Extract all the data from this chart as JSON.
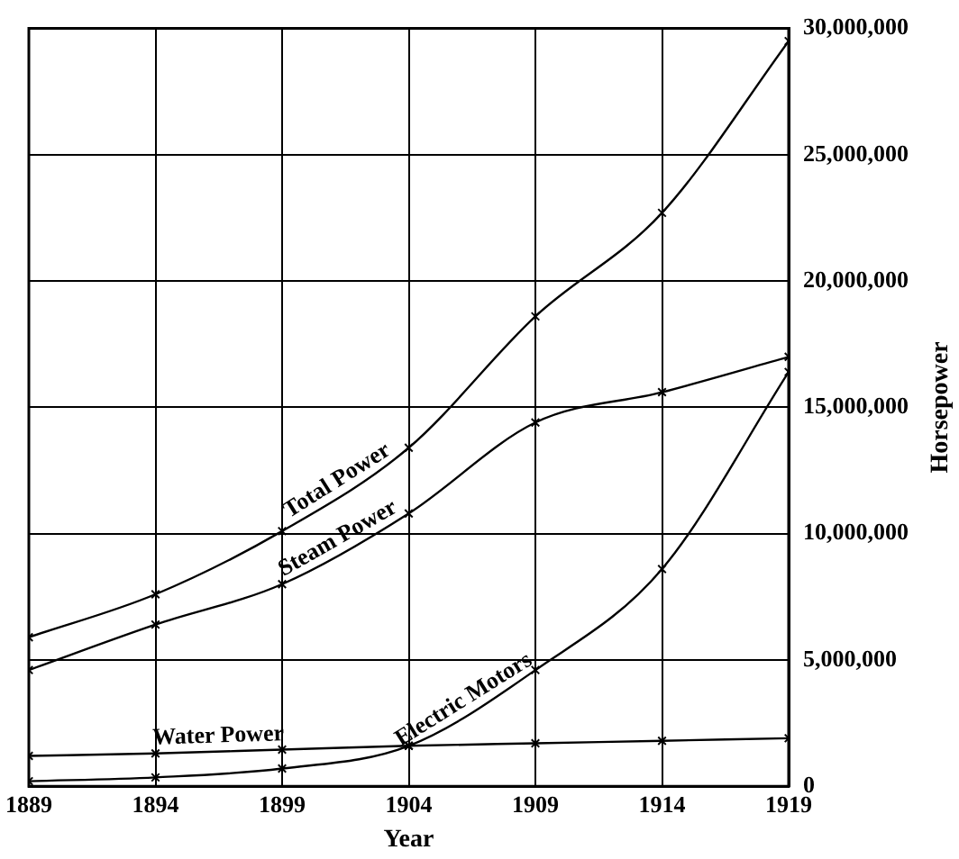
{
  "chart_data": {
    "type": "line",
    "xlabel": "Year",
    "ylabel": "Horsepower",
    "x": [
      1889,
      1894,
      1899,
      1904,
      1909,
      1914,
      1919
    ],
    "series": [
      {
        "name": "Total Power",
        "color": "#000000",
        "values": [
          5900000,
          7600000,
          10100000,
          13400000,
          18600000,
          22700000,
          29500000
        ]
      },
      {
        "name": "Steam Power",
        "color": "#000000",
        "values": [
          4600000,
          6400000,
          8000000,
          10800000,
          14400000,
          15600000,
          17000000
        ]
      },
      {
        "name": "Electric Motors",
        "color": "#000000",
        "values": [
          200000,
          350000,
          700000,
          1600000,
          4600000,
          8600000,
          16400000
        ]
      },
      {
        "name": "Water Power",
        "color": "#000000",
        "values": [
          1200000,
          1300000,
          1450000,
          1600000,
          1700000,
          1800000,
          1900000
        ]
      }
    ],
    "xlim": [
      1889,
      1919
    ],
    "xticks": [
      1889,
      1894,
      1899,
      1904,
      1909,
      1914,
      1919
    ],
    "ylim": [
      0,
      30000000
    ],
    "yticks": [
      0,
      {
        "value": 5000000,
        "label": "5,000,000"
      },
      {
        "value": 10000000,
        "label": "10,000,000"
      },
      {
        "value": 15000000,
        "label": "15,000,000"
      },
      {
        "value": 20000000,
        "label": "20,000,000"
      },
      {
        "value": 25000000,
        "label": "25,000,000"
      },
      {
        "value": 30000000,
        "label": "30,000,000"
      }
    ],
    "grid": true,
    "legend": false,
    "marker": "cross",
    "line_style": "solid"
  }
}
